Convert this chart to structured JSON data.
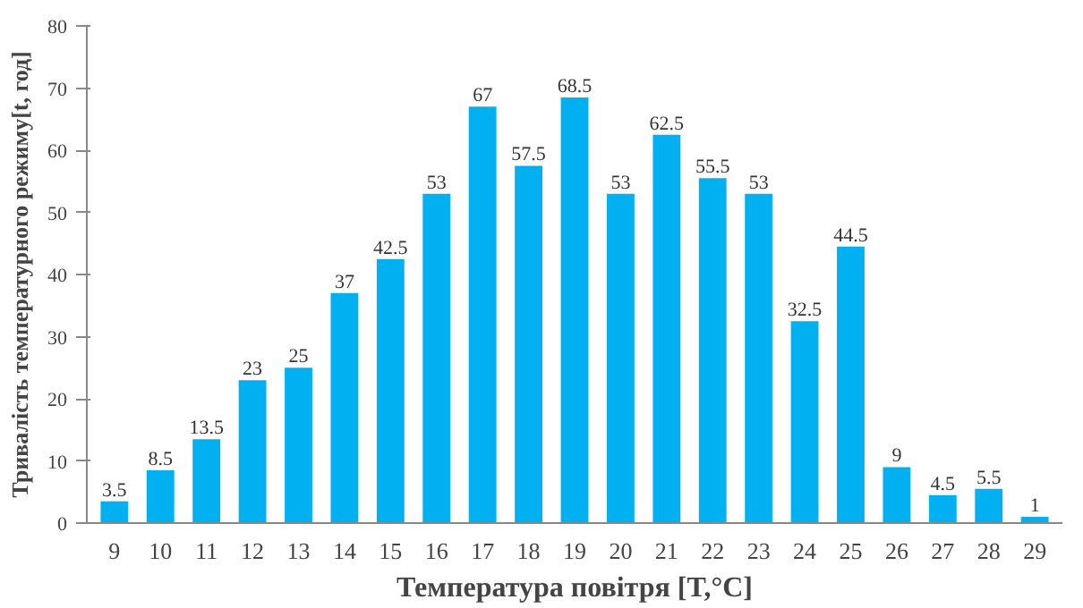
{
  "chart_data": {
    "type": "bar",
    "xlabel": "Температура повітря [T,°C]",
    "ylabel": "Тривалість температурного режиму[t, год]",
    "categories": [
      "9",
      "10",
      "11",
      "12",
      "13",
      "14",
      "15",
      "16",
      "17",
      "18",
      "19",
      "20",
      "21",
      "22",
      "23",
      "24",
      "25",
      "26",
      "27",
      "28",
      "29"
    ],
    "values": [
      3.5,
      8.5,
      13.5,
      23,
      25,
      37,
      42.5,
      53,
      67,
      57.5,
      68.5,
      53,
      62.5,
      55.5,
      53,
      32.5,
      44.5,
      9,
      4.5,
      5.5,
      1
    ],
    "color": "#00b0f0",
    "ylim": [
      0,
      80
    ],
    "yticks": [
      0,
      10,
      20,
      30,
      40,
      50,
      60,
      70,
      80
    ],
    "data_labels": true,
    "grid": false
  }
}
